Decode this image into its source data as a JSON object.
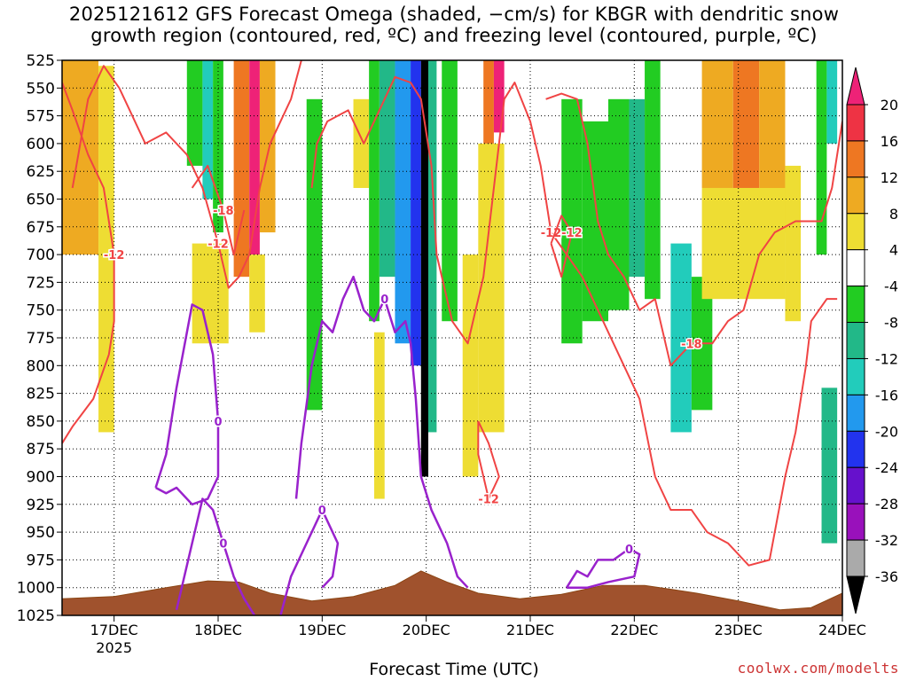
{
  "chart_data": {
    "type": "heatmap",
    "title_line1": "2025121612 GFS Forecast Omega (shaded, −cm/s) for KBGR with dendritic snow",
    "title_line2": "growth region (contoured, red, ºC) and freezing level (contoured, purple, ºC)",
    "xlabel": "Forecast Time (UTC)",
    "credit": "coolwx.com/modelts",
    "x_ticks": [
      "17DEC",
      "18DEC",
      "19DEC",
      "20DEC",
      "21DEC",
      "22DEC",
      "23DEC",
      "24DEC"
    ],
    "x_year": "2025",
    "x_range_days": [
      16.5,
      24.0
    ],
    "y_ticks": [
      525,
      550,
      575,
      600,
      625,
      650,
      675,
      700,
      725,
      750,
      775,
      800,
      825,
      850,
      875,
      900,
      925,
      950,
      975,
      1000,
      1025
    ],
    "y_range_hpa": [
      525,
      1025
    ],
    "colorbar": {
      "levels": [
        -36,
        -32,
        -28,
        -24,
        -20,
        -16,
        -12,
        -8,
        -4,
        4,
        8,
        12,
        16,
        20
      ],
      "labels": [
        "20",
        "16",
        "12",
        "8",
        "4",
        "-4",
        "-8",
        "-12",
        "-16",
        "-20",
        "-24",
        "-28",
        "-32",
        "-36"
      ],
      "colors": {
        "gt20": "#ee2277",
        "16_20": "#ee3344",
        "12_16": "#ee7722",
        "8_12": "#eeaa22",
        "4_8": "#eedd33",
        "neutral": "#ffffff",
        "n4_n8": "#22cc22",
        "n8_n12": "#22b888",
        "n12_n16": "#22ccbb",
        "n16_n20": "#2299ee",
        "n20_n24": "#2233ee",
        "n24_n28": "#6611cc",
        "n28_n32": "#9911bb",
        "n32_n36": "#aaaaaa",
        "lt_n36": "#000000"
      }
    },
    "omega_cells": [
      {
        "t0": 16.5,
        "t1": 16.85,
        "p0": 525,
        "p1": 700,
        "v": 10
      },
      {
        "t0": 16.85,
        "t1": 17.0,
        "p0": 530,
        "p1": 860,
        "v": 6
      },
      {
        "t0": 17.7,
        "t1": 17.85,
        "p0": 525,
        "p1": 620,
        "v": -8
      },
      {
        "t0": 17.85,
        "t1": 17.95,
        "p0": 525,
        "p1": 650,
        "v": -14
      },
      {
        "t0": 17.95,
        "t1": 18.05,
        "p0": 525,
        "p1": 680,
        "v": -8
      },
      {
        "t0": 17.75,
        "t1": 18.1,
        "p0": 690,
        "p1": 780,
        "v": 6
      },
      {
        "t0": 18.15,
        "t1": 18.3,
        "p0": 525,
        "p1": 720,
        "v": 14
      },
      {
        "t0": 18.3,
        "t1": 18.4,
        "p0": 525,
        "p1": 700,
        "v": 22
      },
      {
        "t0": 18.4,
        "t1": 18.55,
        "p0": 525,
        "p1": 680,
        "v": 12
      },
      {
        "t0": 18.3,
        "t1": 18.45,
        "p0": 700,
        "p1": 770,
        "v": 6
      },
      {
        "t0": 18.85,
        "t1": 19.0,
        "p0": 560,
        "p1": 840,
        "v": -6
      },
      {
        "t0": 19.3,
        "t1": 19.45,
        "p0": 560,
        "p1": 640,
        "v": 6
      },
      {
        "t0": 19.45,
        "t1": 19.55,
        "p0": 525,
        "p1": 760,
        "v": -8
      },
      {
        "t0": 19.55,
        "t1": 19.7,
        "p0": 525,
        "p1": 720,
        "v": -12
      },
      {
        "t0": 19.7,
        "t1": 19.85,
        "p0": 525,
        "p1": 780,
        "v": -18
      },
      {
        "t0": 19.85,
        "t1": 19.95,
        "p0": 525,
        "p1": 800,
        "v": -22
      },
      {
        "t0": 19.95,
        "t1": 20.02,
        "p0": 525,
        "p1": 900,
        "v": -37
      },
      {
        "t0": 20.02,
        "t1": 20.1,
        "p0": 525,
        "p1": 860,
        "v": -12
      },
      {
        "t0": 20.15,
        "t1": 20.3,
        "p0": 525,
        "p1": 760,
        "v": -6
      },
      {
        "t0": 19.5,
        "t1": 19.6,
        "p0": 770,
        "p1": 920,
        "v": 8
      },
      {
        "t0": 20.35,
        "t1": 20.5,
        "p0": 700,
        "p1": 900,
        "v": 6
      },
      {
        "t0": 20.55,
        "t1": 20.65,
        "p0": 525,
        "p1": 600,
        "v": 14
      },
      {
        "t0": 20.65,
        "t1": 20.75,
        "p0": 525,
        "p1": 590,
        "v": 22
      },
      {
        "t0": 20.5,
        "t1": 20.75,
        "p0": 600,
        "p1": 860,
        "v": 6
      },
      {
        "t0": 21.3,
        "t1": 21.5,
        "p0": 560,
        "p1": 780,
        "v": -6
      },
      {
        "t0": 21.5,
        "t1": 21.75,
        "p0": 580,
        "p1": 760,
        "v": -8
      },
      {
        "t0": 21.75,
        "t1": 21.95,
        "p0": 560,
        "p1": 750,
        "v": -6
      },
      {
        "t0": 21.95,
        "t1": 22.1,
        "p0": 560,
        "p1": 720,
        "v": -10
      },
      {
        "t0": 22.1,
        "t1": 22.25,
        "p0": 525,
        "p1": 740,
        "v": -6
      },
      {
        "t0": 22.35,
        "t1": 22.55,
        "p0": 690,
        "p1": 860,
        "v": -14
      },
      {
        "t0": 22.55,
        "t1": 22.75,
        "p0": 720,
        "p1": 840,
        "v": -8
      },
      {
        "t0": 22.65,
        "t1": 22.95,
        "p0": 525,
        "p1": 640,
        "v": 10
      },
      {
        "t0": 22.95,
        "t1": 23.2,
        "p0": 525,
        "p1": 640,
        "v": 14
      },
      {
        "t0": 23.2,
        "t1": 23.45,
        "p0": 525,
        "p1": 680,
        "v": 10
      },
      {
        "t0": 22.65,
        "t1": 23.45,
        "p0": 640,
        "p1": 740,
        "v": 6
      },
      {
        "t0": 23.45,
        "t1": 23.6,
        "p0": 620,
        "p1": 760,
        "v": 6
      },
      {
        "t0": 23.75,
        "t1": 23.85,
        "p0": 525,
        "p1": 700,
        "v": -8
      },
      {
        "t0": 23.85,
        "t1": 23.95,
        "p0": 525,
        "p1": 600,
        "v": -14
      },
      {
        "t0": 23.8,
        "t1": 23.95,
        "p0": 820,
        "p1": 960,
        "v": -12
      }
    ],
    "dgz_contours": [
      {
        "label": "-12",
        "points": [
          [
            16.5,
            870
          ],
          [
            16.6,
            855
          ],
          [
            16.8,
            830
          ],
          [
            16.95,
            790
          ],
          [
            17.0,
            760
          ],
          [
            17.0,
            700
          ],
          [
            16.9,
            640
          ],
          [
            16.75,
            610
          ],
          [
            16.6,
            570
          ],
          [
            16.5,
            545
          ]
        ]
      },
      {
        "label": "-12",
        "points": [
          [
            16.6,
            640
          ],
          [
            16.75,
            560
          ],
          [
            16.9,
            530
          ],
          [
            17.05,
            550
          ],
          [
            17.15,
            570
          ],
          [
            17.3,
            600
          ],
          [
            17.5,
            590
          ],
          [
            17.7,
            610
          ],
          [
            17.85,
            640
          ],
          [
            18.0,
            690
          ],
          [
            18.1,
            730
          ],
          [
            18.2,
            720
          ],
          [
            18.3,
            700
          ],
          [
            18.4,
            640
          ],
          [
            18.5,
            600
          ],
          [
            18.6,
            580
          ],
          [
            18.7,
            560
          ],
          [
            18.8,
            525
          ]
        ]
      },
      {
        "label": "-18",
        "points": [
          [
            17.75,
            640
          ],
          [
            17.9,
            620
          ],
          [
            18.05,
            660
          ],
          [
            18.15,
            700
          ],
          [
            18.25,
            660
          ]
        ]
      },
      {
        "label": "-12",
        "points": [
          [
            18.9,
            640
          ],
          [
            18.95,
            600
          ],
          [
            19.05,
            580
          ],
          [
            19.25,
            570
          ],
          [
            19.4,
            600
          ],
          [
            19.55,
            570
          ],
          [
            19.7,
            540
          ],
          [
            19.85,
            545
          ],
          [
            19.95,
            560
          ],
          [
            20.05,
            620
          ],
          [
            20.1,
            700
          ],
          [
            20.25,
            760
          ],
          [
            20.4,
            780
          ],
          [
            20.55,
            720
          ],
          [
            20.65,
            640
          ],
          [
            20.75,
            560
          ],
          [
            20.85,
            545
          ],
          [
            21.0,
            580
          ],
          [
            21.1,
            620
          ],
          [
            21.2,
            680
          ],
          [
            21.35,
            700
          ],
          [
            21.5,
            720
          ],
          [
            21.7,
            760
          ],
          [
            21.9,
            800
          ],
          [
            22.05,
            830
          ],
          [
            22.2,
            900
          ],
          [
            22.35,
            930
          ],
          [
            22.55,
            930
          ],
          [
            22.7,
            950
          ],
          [
            22.9,
            960
          ],
          [
            23.1,
            980
          ],
          [
            23.3,
            975
          ],
          [
            23.45,
            900
          ],
          [
            23.55,
            860
          ],
          [
            23.65,
            800
          ],
          [
            23.7,
            760
          ],
          [
            23.85,
            740
          ],
          [
            23.95,
            740
          ]
        ]
      },
      {
        "label": "-18",
        "points": [
          [
            21.15,
            560
          ],
          [
            21.3,
            555
          ],
          [
            21.45,
            560
          ],
          [
            21.55,
            600
          ],
          [
            21.65,
            670
          ],
          [
            21.75,
            700
          ],
          [
            21.9,
            720
          ],
          [
            22.05,
            750
          ],
          [
            22.2,
            740
          ],
          [
            22.35,
            800
          ],
          [
            22.55,
            780
          ],
          [
            22.75,
            780
          ],
          [
            22.9,
            760
          ],
          [
            23.05,
            750
          ],
          [
            23.2,
            700
          ],
          [
            23.35,
            680
          ],
          [
            23.55,
            670
          ],
          [
            23.8,
            670
          ],
          [
            23.9,
            640
          ],
          [
            24.0,
            580
          ]
        ]
      },
      {
        "label": "-12",
        "points": [
          [
            20.5,
            850
          ],
          [
            20.6,
            870
          ],
          [
            20.7,
            900
          ],
          [
            20.6,
            920
          ],
          [
            20.5,
            880
          ],
          [
            20.5,
            850
          ]
        ]
      },
      {
        "label": "-12",
        "points": [
          [
            21.2,
            690
          ],
          [
            21.3,
            665
          ],
          [
            21.4,
            680
          ],
          [
            21.3,
            720
          ],
          [
            21.2,
            690
          ]
        ]
      }
    ],
    "freezing_contours": [
      {
        "label": "0",
        "points": [
          [
            17.4,
            910
          ],
          [
            17.5,
            880
          ],
          [
            17.6,
            820
          ],
          [
            17.7,
            770
          ],
          [
            17.75,
            745
          ],
          [
            17.85,
            750
          ],
          [
            17.95,
            790
          ],
          [
            18.0,
            850
          ],
          [
            18.0,
            900
          ],
          [
            17.9,
            920
          ],
          [
            17.75,
            925
          ],
          [
            17.6,
            910
          ],
          [
            17.5,
            915
          ],
          [
            17.4,
            910
          ]
        ]
      },
      {
        "label": "0",
        "points": [
          [
            17.6,
            1020
          ],
          [
            17.75,
            960
          ],
          [
            17.85,
            920
          ],
          [
            17.95,
            930
          ],
          [
            18.05,
            960
          ],
          [
            18.15,
            990
          ],
          [
            18.25,
            1010
          ],
          [
            18.35,
            1025
          ]
        ]
      },
      {
        "label": "0",
        "points": [
          [
            18.6,
            1025
          ],
          [
            18.7,
            990
          ],
          [
            18.85,
            960
          ],
          [
            19.0,
            930
          ],
          [
            19.15,
            960
          ],
          [
            19.1,
            990
          ],
          [
            19.0,
            1000
          ]
        ]
      },
      {
        "label": "0",
        "points": [
          [
            18.75,
            920
          ],
          [
            18.8,
            870
          ],
          [
            18.9,
            800
          ],
          [
            19.0,
            760
          ],
          [
            19.1,
            770
          ],
          [
            19.2,
            740
          ],
          [
            19.3,
            720
          ],
          [
            19.4,
            750
          ],
          [
            19.5,
            760
          ],
          [
            19.6,
            740
          ],
          [
            19.7,
            770
          ],
          [
            19.8,
            760
          ],
          [
            19.85,
            780
          ],
          [
            19.9,
            830
          ],
          [
            19.95,
            900
          ],
          [
            20.05,
            930
          ],
          [
            20.2,
            960
          ],
          [
            20.3,
            990
          ],
          [
            20.4,
            1000
          ]
        ]
      },
      {
        "label": "0",
        "points": [
          [
            21.35,
            1000
          ],
          [
            21.45,
            985
          ],
          [
            21.55,
            990
          ],
          [
            21.65,
            975
          ],
          [
            21.8,
            975
          ],
          [
            21.95,
            965
          ],
          [
            22.05,
            970
          ],
          [
            22.0,
            990
          ],
          [
            21.75,
            995
          ],
          [
            21.55,
            1000
          ],
          [
            21.35,
            1000
          ]
        ]
      }
    ],
    "terrain": [
      [
        16.5,
        1010
      ],
      [
        17.0,
        1008
      ],
      [
        17.5,
        1000
      ],
      [
        17.9,
        994
      ],
      [
        18.2,
        995
      ],
      [
        18.5,
        1005
      ],
      [
        18.9,
        1012
      ],
      [
        19.3,
        1008
      ],
      [
        19.7,
        998
      ],
      [
        19.95,
        985
      ],
      [
        20.2,
        995
      ],
      [
        20.5,
        1005
      ],
      [
        20.9,
        1010
      ],
      [
        21.3,
        1006
      ],
      [
        21.7,
        998
      ],
      [
        22.1,
        998
      ],
      [
        22.6,
        1005
      ],
      [
        23.0,
        1012
      ],
      [
        23.4,
        1020
      ],
      [
        23.7,
        1018
      ],
      [
        24.0,
        1005
      ]
    ]
  }
}
